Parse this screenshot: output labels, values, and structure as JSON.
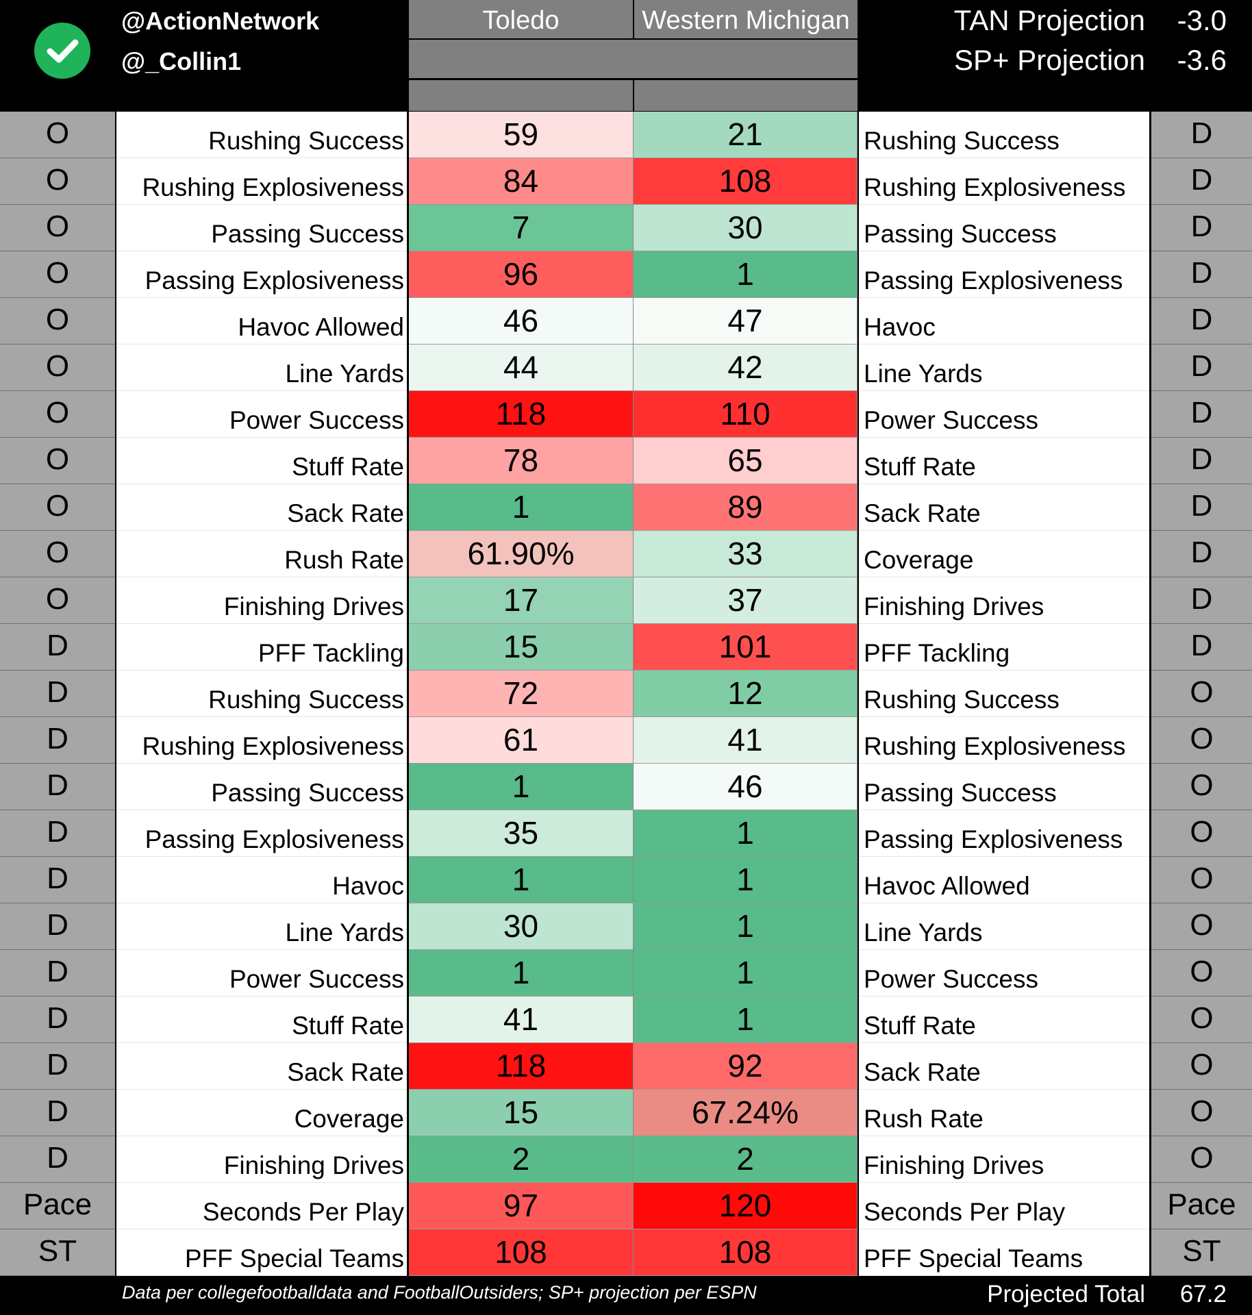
{
  "brand": {
    "handle_primary": "@ActionNetwork",
    "handle_secondary": "@_Collin1",
    "logo_icon": "check-circle-icon",
    "logo_color": "#1fb35a"
  },
  "teams": {
    "left": "Toledo",
    "right": "Western Michigan"
  },
  "projections": {
    "tan_label": "TAN Projection",
    "tan_value": "-3.0",
    "sp_label": "SP+ Projection",
    "sp_value": "-3.6"
  },
  "rows": [
    {
      "left_side": "O",
      "left_metric": "Rushing Success",
      "toledo": "59",
      "wmu": "21",
      "right_metric": "Rushing Success",
      "right_side": "D",
      "toledo_color": "#fde0e0",
      "wmu_color": "#a3dabf"
    },
    {
      "left_side": "O",
      "left_metric": "Rushing Explosiveness",
      "toledo": "84",
      "wmu": "108",
      "right_metric": "Rushing Explosiveness",
      "right_side": "D",
      "toledo_color": "#fe8a89",
      "wmu_color": "#ff3b3b"
    },
    {
      "left_side": "O",
      "left_metric": "Passing Success",
      "toledo": "7",
      "wmu": "30",
      "right_metric": "Passing Success",
      "right_side": "D",
      "toledo_color": "#6cc597",
      "wmu_color": "#bee5d1"
    },
    {
      "left_side": "O",
      "left_metric": "Passing Explosiveness",
      "toledo": "96",
      "wmu": "1",
      "right_metric": "Passing Explosiveness",
      "right_side": "D",
      "toledo_color": "#ff5e5e",
      "wmu_color": "#58bb89"
    },
    {
      "left_side": "O",
      "left_metric": "Havoc Allowed",
      "toledo": "46",
      "wmu": "47",
      "right_metric": "Havoc",
      "right_side": "D",
      "toledo_color": "#f4faf7",
      "wmu_color": "#f6fbf8"
    },
    {
      "left_side": "O",
      "left_metric": "Line Yards",
      "toledo": "44",
      "wmu": "42",
      "right_metric": "Line Yards",
      "right_side": "D",
      "toledo_color": "#ebf6f0",
      "wmu_color": "#e3f3ea"
    },
    {
      "left_side": "O",
      "left_metric": "Power Success",
      "toledo": "118",
      "wmu": "110",
      "right_metric": "Power Success",
      "right_side": "D",
      "toledo_color": "#ff1212",
      "wmu_color": "#ff3030"
    },
    {
      "left_side": "O",
      "left_metric": "Stuff Rate",
      "toledo": "78",
      "wmu": "65",
      "right_metric": "Stuff Rate",
      "right_side": "D",
      "toledo_color": "#fea3a2",
      "wmu_color": "#ffcece"
    },
    {
      "left_side": "O",
      "left_metric": "Sack Rate",
      "toledo": "1",
      "wmu": "89",
      "right_metric": "Sack Rate",
      "right_side": "D",
      "toledo_color": "#58bb89",
      "wmu_color": "#fe7474"
    },
    {
      "left_side": "O",
      "left_metric": "Rush Rate",
      "toledo": "61.90%",
      "wmu": "33",
      "right_metric": "Coverage",
      "right_side": "D",
      "toledo_color": "#f3c2bd",
      "wmu_color": "#c7e9d7"
    },
    {
      "left_side": "O",
      "left_metric": "Finishing Drives",
      "toledo": "17",
      "wmu": "37",
      "right_metric": "Finishing Drives",
      "right_side": "D",
      "toledo_color": "#94d3b4",
      "wmu_color": "#d3ede0"
    },
    {
      "left_side": "D",
      "left_metric": "PFF Tackling",
      "toledo": "15",
      "wmu": "101",
      "right_metric": "PFF Tackling",
      "right_side": "D",
      "toledo_color": "#8ccfae",
      "wmu_color": "#ff5050"
    },
    {
      "left_side": "D",
      "left_metric": "Rushing Success",
      "toledo": "72",
      "wmu": "12",
      "right_metric": "Rushing Success",
      "right_side": "O",
      "toledo_color": "#ffb4b4",
      "wmu_color": "#80cca5"
    },
    {
      "left_side": "D",
      "left_metric": "Rushing Explosiveness",
      "toledo": "61",
      "wmu": "41",
      "right_metric": "Rushing Explosiveness",
      "right_side": "O",
      "toledo_color": "#ffdcdc",
      "wmu_color": "#e2f3e9"
    },
    {
      "left_side": "D",
      "left_metric": "Passing Success",
      "toledo": "1",
      "wmu": "46",
      "right_metric": "Passing Success",
      "right_side": "O",
      "toledo_color": "#58bb89",
      "wmu_color": "#f4faf7"
    },
    {
      "left_side": "D",
      "left_metric": "Passing Explosiveness",
      "toledo": "35",
      "wmu": "1",
      "right_metric": "Passing Explosiveness",
      "right_side": "O",
      "toledo_color": "#cdebdb",
      "wmu_color": "#58bb89"
    },
    {
      "left_side": "D",
      "left_metric": "Havoc",
      "toledo": "1",
      "wmu": "1",
      "right_metric": "Havoc Allowed",
      "right_side": "O",
      "toledo_color": "#58bb89",
      "wmu_color": "#58bb89"
    },
    {
      "left_side": "D",
      "left_metric": "Line Yards",
      "toledo": "30",
      "wmu": "1",
      "right_metric": "Line Yards",
      "right_side": "O",
      "toledo_color": "#bee5d1",
      "wmu_color": "#58bb89"
    },
    {
      "left_side": "D",
      "left_metric": "Power Success",
      "toledo": "1",
      "wmu": "1",
      "right_metric": "Power Success",
      "right_side": "O",
      "toledo_color": "#58bb89",
      "wmu_color": "#58bb89"
    },
    {
      "left_side": "D",
      "left_metric": "Stuff Rate",
      "toledo": "41",
      "wmu": "1",
      "right_metric": "Stuff Rate",
      "right_side": "O",
      "toledo_color": "#e2f3e9",
      "wmu_color": "#58bb89"
    },
    {
      "left_side": "D",
      "left_metric": "Sack Rate",
      "toledo": "118",
      "wmu": "92",
      "right_metric": "Sack Rate",
      "right_side": "O",
      "toledo_color": "#ff1212",
      "wmu_color": "#fe6a6a"
    },
    {
      "left_side": "D",
      "left_metric": "Coverage",
      "toledo": "15",
      "wmu": "67.24%",
      "right_metric": "Rush Rate",
      "right_side": "O",
      "toledo_color": "#8ccfae",
      "wmu_color": "#ea8c84"
    },
    {
      "left_side": "D",
      "left_metric": "Finishing Drives",
      "toledo": "2",
      "wmu": "2",
      "right_metric": "Finishing Drives",
      "right_side": "O",
      "toledo_color": "#5bbc8b",
      "wmu_color": "#5bbc8b"
    },
    {
      "left_side": "Pace",
      "left_metric": "Seconds Per Play",
      "toledo": "97",
      "wmu": "120",
      "right_metric": "Seconds Per Play",
      "right_side": "Pace",
      "toledo_color": "#ff5858",
      "wmu_color": "#ff0909"
    },
    {
      "left_side": "ST",
      "left_metric": "PFF Special Teams",
      "toledo": "108",
      "wmu": "108",
      "right_metric": "PFF Special Teams",
      "right_side": "ST",
      "toledo_color": "#ff3737",
      "wmu_color": "#ff3737"
    }
  ],
  "footer": {
    "note": "Data per collegefootballdata and FootballOutsiders; SP+ projection per ESPN",
    "total_label": "Projected Total",
    "total_value": "67.2"
  }
}
